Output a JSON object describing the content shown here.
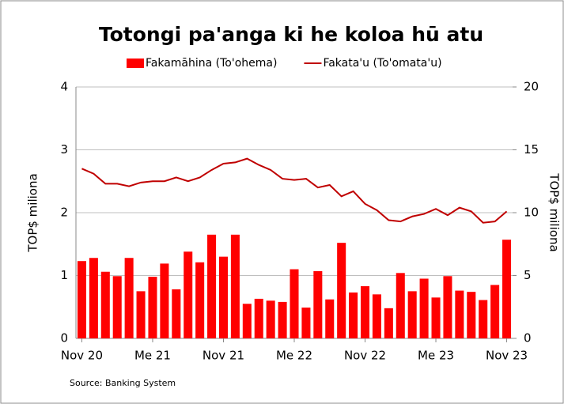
{
  "chart_data": {
    "type": "bar_line",
    "title": "Totongi pa'anga ki he koloa hū atu",
    "ylabel": "TOP$ miliona",
    "y2label": "TOP$ miliona",
    "source": "Source: Banking System",
    "categories": [
      "Nov 20",
      null,
      null,
      null,
      null,
      null,
      "Me 21",
      null,
      null,
      null,
      null,
      null,
      "Nov 21",
      null,
      null,
      null,
      null,
      null,
      "Me 22",
      null,
      null,
      null,
      null,
      null,
      "Nov 22",
      null,
      null,
      null,
      null,
      null,
      "Me 23",
      null,
      null,
      null,
      null,
      null,
      "Nov 23"
    ],
    "series": [
      {
        "name": "Fakamāhina (To'ohema)",
        "type": "bar",
        "color": "#ff0000",
        "axis": "y",
        "values": [
          1.23,
          1.28,
          1.06,
          0.99,
          1.28,
          0.75,
          0.98,
          1.19,
          0.78,
          1.38,
          1.21,
          1.65,
          1.3,
          1.65,
          0.55,
          0.63,
          0.6,
          0.58,
          1.1,
          0.49,
          1.07,
          0.62,
          1.52,
          0.73,
          0.83,
          0.7,
          0.48,
          1.04,
          0.75,
          0.95,
          0.65,
          0.99,
          0.76,
          0.74,
          0.61,
          0.85,
          1.57
        ]
      },
      {
        "name": "Fakata'u (To'omata'u)",
        "type": "line",
        "color": "#c00000",
        "axis": "y2",
        "values": [
          13.5,
          13.1,
          12.3,
          12.3,
          12.1,
          12.4,
          12.5,
          12.5,
          12.8,
          12.5,
          12.8,
          13.4,
          13.9,
          14.0,
          14.3,
          13.8,
          13.4,
          12.7,
          12.6,
          12.7,
          12.0,
          12.2,
          11.3,
          11.7,
          10.7,
          10.2,
          9.4,
          9.3,
          9.7,
          9.9,
          10.3,
          9.8,
          10.4,
          10.1,
          9.2,
          9.3,
          10.1
        ]
      }
    ],
    "ylim": [
      0,
      4
    ],
    "yticks": [
      0,
      1,
      2,
      3,
      4
    ],
    "y2lim": [
      0,
      20
    ],
    "y2ticks": [
      0,
      5,
      10,
      15,
      20
    ],
    "grid": true,
    "legend": "top"
  }
}
